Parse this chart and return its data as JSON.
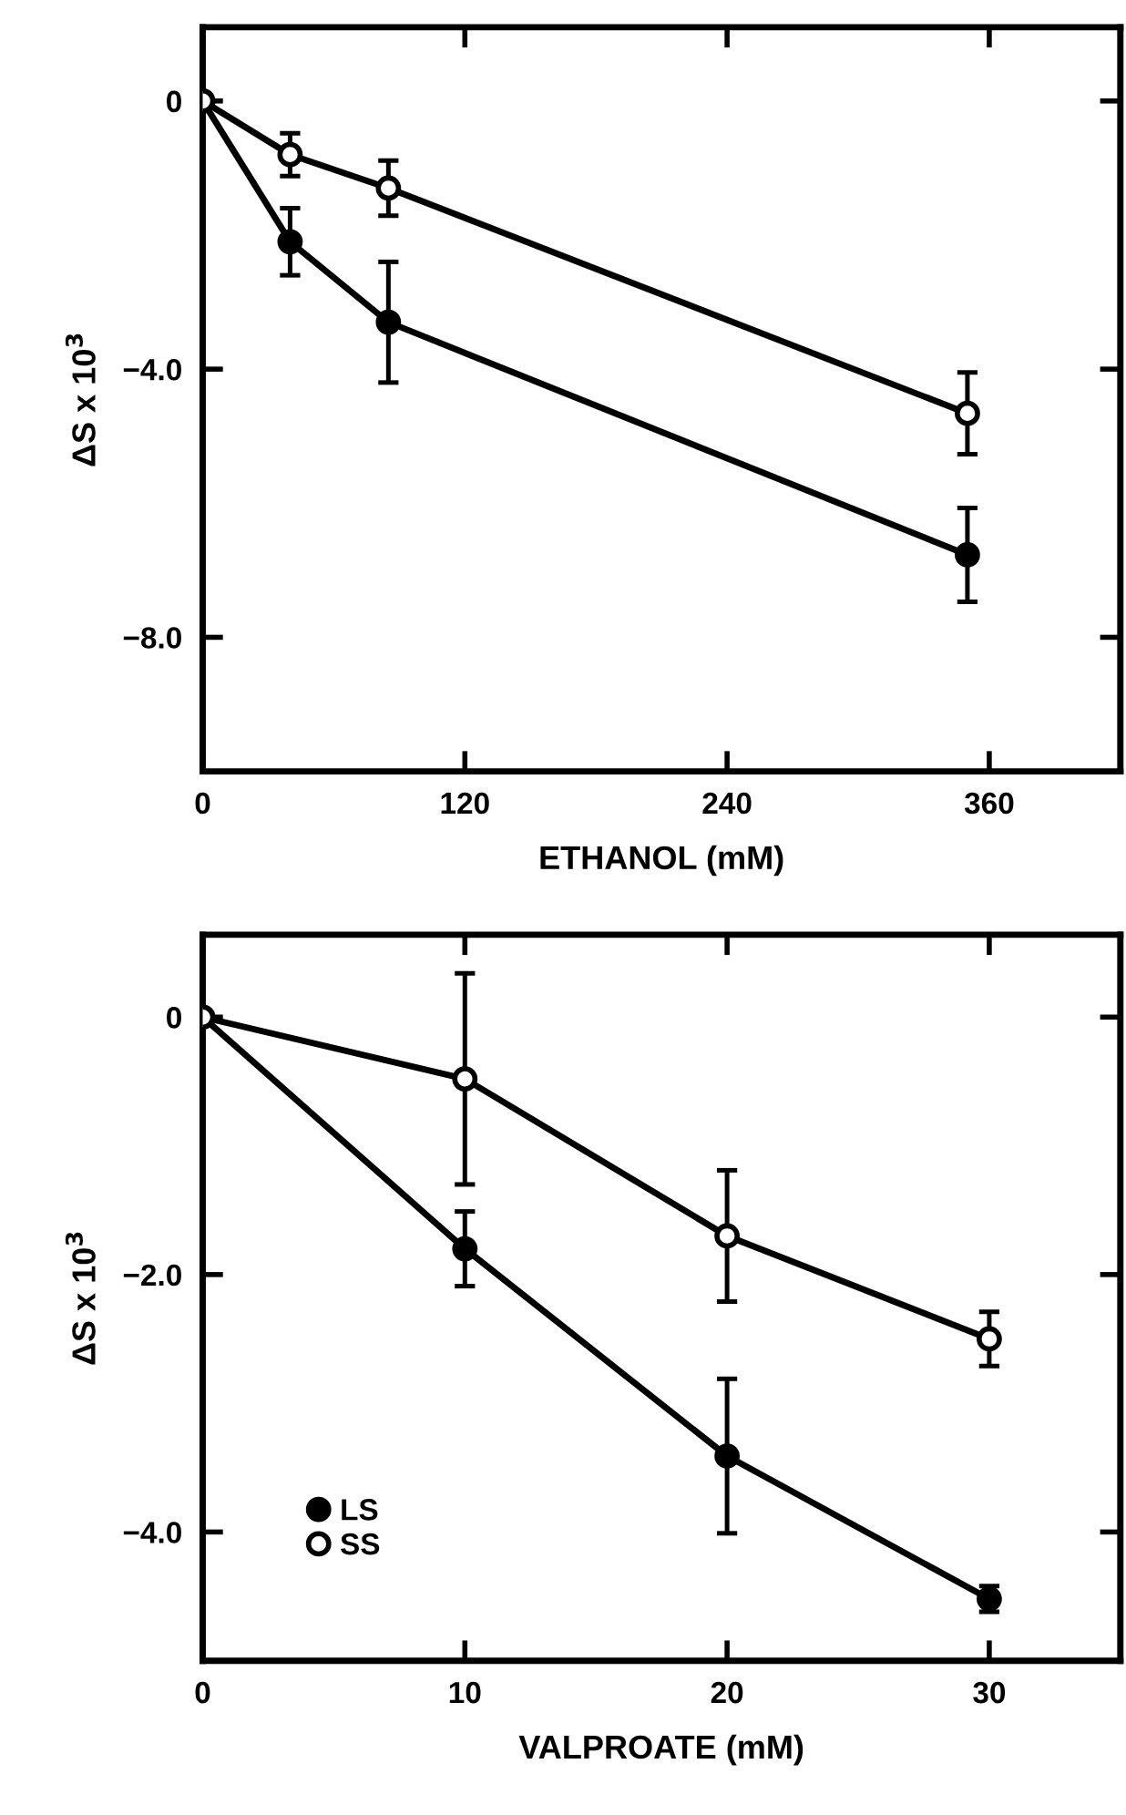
{
  "chart_data": [
    {
      "type": "line",
      "xlabel": "ETHANOL (mM)",
      "ylabel": "ΔS x 10$^{3}$",
      "xlim": [
        0,
        420
      ],
      "xticks": [
        0,
        120,
        240,
        360
      ],
      "ylim": [
        -10,
        1.1
      ],
      "yticks": [
        {
          "value": 0,
          "label": "0"
        },
        {
          "value": -4,
          "label": "−4.0"
        },
        {
          "value": -8,
          "label": "−8.0"
        }
      ],
      "marker": "circle",
      "line_style": "solid",
      "grid": false,
      "legend": false,
      "series": [
        {
          "color": "#000000",
          "x": [
            0,
            40,
            85,
            350
          ],
          "values": [
            0,
            -2.1,
            -3.3,
            -6.77
          ],
          "errors": [
            null,
            0.5,
            0.9,
            0.7
          ]
        },
        {
          "color": "#000000",
          "x": [
            0,
            40,
            85,
            350
          ],
          "values": [
            0,
            -0.8,
            -1.3,
            -4.66
          ],
          "errors": [
            null,
            0.32,
            0.41,
            0.61
          ]
        }
      ]
    },
    {
      "type": "line",
      "xlabel": "VALPROATE (mM)",
      "ylabel": "ΔS x 10$^{3}$",
      "xlim": [
        0,
        35
      ],
      "xticks": [
        0,
        10,
        20,
        30
      ],
      "ylim": [
        -5.0,
        0.64
      ],
      "yticks": [
        {
          "value": 0,
          "label": "0"
        },
        {
          "value": -2,
          "label": "−2.0"
        },
        {
          "value": -4,
          "label": "−4.0"
        }
      ],
      "marker": "circle",
      "line_style": "solid",
      "grid": false,
      "legend": "bottom left",
      "series": [
        {
          "name": "LS",
          "color": "#000000",
          "x": [
            0,
            10,
            20,
            30
          ],
          "values": [
            0,
            -1.8,
            -3.41,
            -4.52
          ],
          "errors": [
            null,
            0.29,
            0.6,
            0.1
          ]
        },
        {
          "name": "SS",
          "color": "#000000",
          "x": [
            0,
            10,
            20,
            30
          ],
          "values": [
            0,
            -0.48,
            -1.7,
            -2.5
          ],
          "errors": [
            null,
            0.82,
            0.51,
            0.21
          ]
        }
      ]
    }
  ]
}
